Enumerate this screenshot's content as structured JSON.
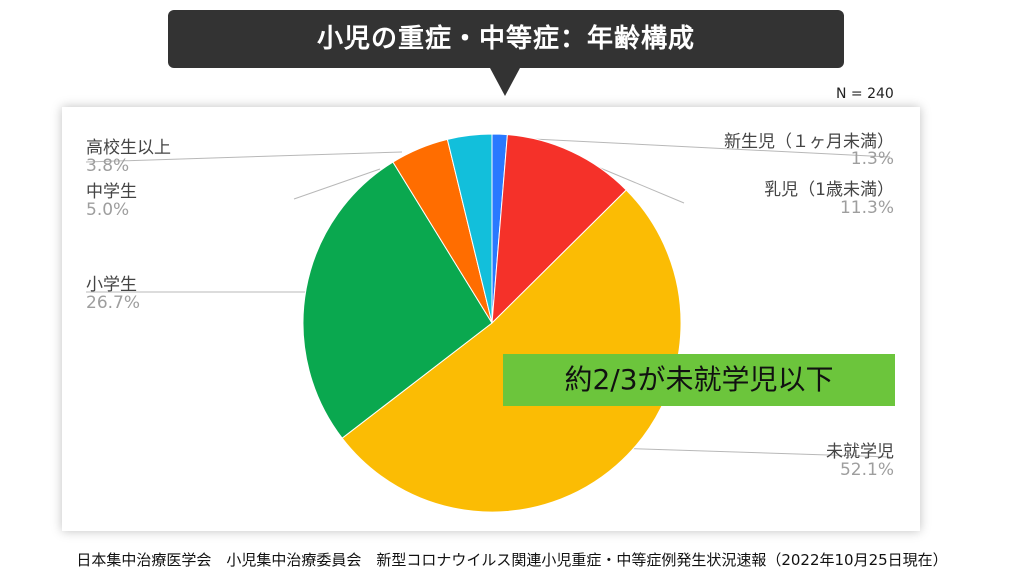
{
  "title": "小児の重症・中等症：年齢構成",
  "n_label": "N = 240",
  "callout": "約2/3が未就学児以下",
  "footer": "日本集中治療医学会　小児集中治療委員会　新型コロナウイルス関連小児重症・中等症例発生状況速報（2022年10月25日現在）",
  "chart_data": {
    "type": "pie",
    "title": "小児の重症・中等症：年齢構成",
    "slices": [
      {
        "label": "新生児（１ヶ月未満）",
        "pct_label": "1.3%",
        "value": 1.3,
        "color": "#2979ff"
      },
      {
        "label": "乳児（1歳未満）",
        "pct_label": "11.3%",
        "value": 11.3,
        "color": "#f53129"
      },
      {
        "label": "未就学児",
        "pct_label": "52.1%",
        "value": 52.1,
        "color": "#fbbc04"
      },
      {
        "label": "小学生",
        "pct_label": "26.7%",
        "value": 26.7,
        "color": "#0aa84f"
      },
      {
        "label": "中学生",
        "pct_label": "5.0%",
        "value": 5.0,
        "color": "#ff6d00"
      },
      {
        "label": "高校生以上",
        "pct_label": "3.8%",
        "value": 3.8,
        "color": "#12bfdb"
      }
    ]
  }
}
